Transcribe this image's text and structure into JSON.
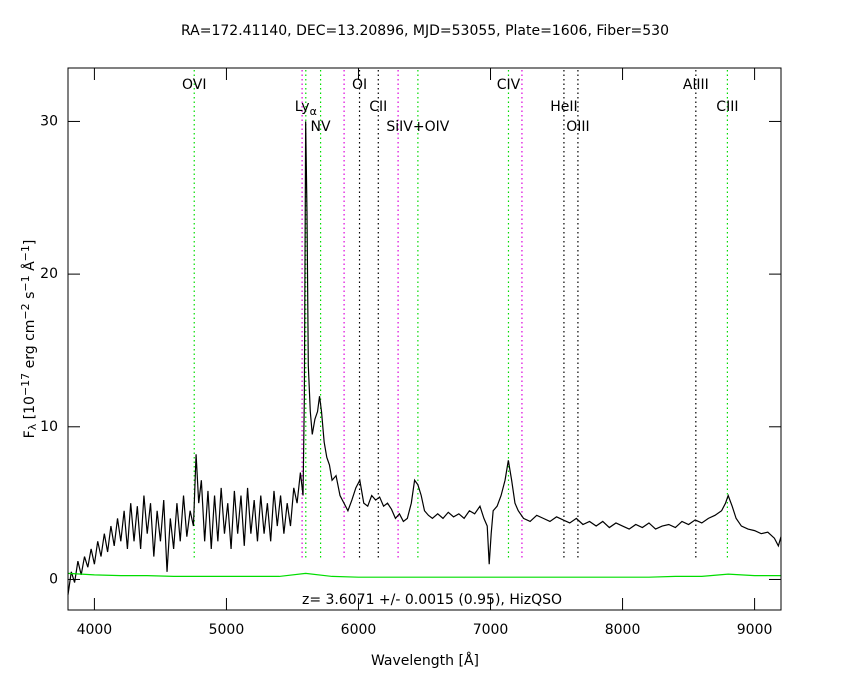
{
  "chart_data": {
    "type": "line",
    "title": "RA=172.41140, DEC=13.20896, MJD=53055, Plate=1606, Fiber=530",
    "xlabel": "Wavelength [Å]",
    "ylabel": [
      {
        "text": "F"
      },
      {
        "text": "λ",
        "script": "sub"
      },
      {
        "text": " [10"
      },
      {
        "text": "−17",
        "script": "sup"
      },
      {
        "text": " erg cm"
      },
      {
        "text": "−2",
        "script": "sup"
      },
      {
        "text": " s"
      },
      {
        "text": "−1",
        "script": "sup"
      },
      {
        "text": " Å"
      },
      {
        "text": "−1",
        "script": "sup"
      },
      {
        "text": "]"
      }
    ],
    "annotation": "z=  3.6071 +/- 0.0015 (0.95), HizQSO",
    "xlim": [
      3800,
      9200
    ],
    "xticks": [
      4000,
      5000,
      6000,
      7000,
      8000,
      9000
    ],
    "ylim": [
      -2,
      33.5
    ],
    "yticks": [
      0,
      10,
      20,
      30
    ],
    "series": [
      {
        "color": "#000000",
        "x": [
          3800,
          3825,
          3850,
          3875,
          3900,
          3925,
          3950,
          3975,
          4000,
          4025,
          4050,
          4075,
          4100,
          4125,
          4150,
          4175,
          4200,
          4225,
          4250,
          4275,
          4300,
          4325,
          4350,
          4375,
          4400,
          4425,
          4450,
          4475,
          4500,
          4525,
          4550,
          4575,
          4600,
          4625,
          4650,
          4675,
          4700,
          4725,
          4750,
          4770,
          4790,
          4810,
          4835,
          4860,
          4885,
          4910,
          4935,
          4960,
          4985,
          5010,
          5035,
          5060,
          5085,
          5110,
          5135,
          5160,
          5185,
          5210,
          5235,
          5260,
          5285,
          5310,
          5335,
          5360,
          5385,
          5410,
          5435,
          5460,
          5485,
          5510,
          5535,
          5560,
          5580,
          5590,
          5600,
          5610,
          5620,
          5635,
          5650,
          5670,
          5690,
          5705,
          5720,
          5740,
          5760,
          5780,
          5800,
          5830,
          5860,
          5890,
          5920,
          5950,
          5980,
          6010,
          6040,
          6070,
          6100,
          6130,
          6160,
          6190,
          6220,
          6250,
          6280,
          6310,
          6340,
          6370,
          6400,
          6425,
          6450,
          6475,
          6500,
          6530,
          6560,
          6600,
          6640,
          6680,
          6720,
          6760,
          6800,
          6840,
          6880,
          6920,
          6950,
          6975,
          6990,
          7005,
          7020,
          7050,
          7080,
          7110,
          7135,
          7160,
          7185,
          7210,
          7250,
          7300,
          7350,
          7400,
          7450,
          7500,
          7550,
          7600,
          7650,
          7700,
          7750,
          7800,
          7850,
          7900,
          7950,
          8000,
          8050,
          8100,
          8150,
          8200,
          8250,
          8300,
          8350,
          8400,
          8450,
          8500,
          8550,
          8600,
          8650,
          8700,
          8750,
          8780,
          8800,
          8830,
          8860,
          8900,
          8950,
          9000,
          9050,
          9100,
          9150,
          9180,
          9200
        ],
        "values": [
          -1.0,
          0.5,
          -0.2,
          1.2,
          0.3,
          1.5,
          0.8,
          2.0,
          1.0,
          2.5,
          1.5,
          3.0,
          1.8,
          3.5,
          2.2,
          4.0,
          2.5,
          4.5,
          2.0,
          5.0,
          2.5,
          4.8,
          2.0,
          5.5,
          3.0,
          5.0,
          1.5,
          4.5,
          2.5,
          5.2,
          0.5,
          4.0,
          2.0,
          5.0,
          2.5,
          5.5,
          2.8,
          4.5,
          3.5,
          8.2,
          5.0,
          6.5,
          2.5,
          5.8,
          2.0,
          5.5,
          2.5,
          6.0,
          3.0,
          5.0,
          2.0,
          5.8,
          3.0,
          5.5,
          2.2,
          6.0,
          3.0,
          5.2,
          2.5,
          5.5,
          3.0,
          5.0,
          2.5,
          5.8,
          3.5,
          5.5,
          3.0,
          5.0,
          3.5,
          6.0,
          5.0,
          7.0,
          5.5,
          12.0,
          30.0,
          24.0,
          14.0,
          11.0,
          9.5,
          10.5,
          11.0,
          12.0,
          11.0,
          9.0,
          8.0,
          7.5,
          6.5,
          6.8,
          5.5,
          5.0,
          4.5,
          5.2,
          6.0,
          6.5,
          5.0,
          4.8,
          5.5,
          5.2,
          5.4,
          4.8,
          5.0,
          4.6,
          4.0,
          4.3,
          3.8,
          4.0,
          5.0,
          6.5,
          6.2,
          5.5,
          4.5,
          4.2,
          4.0,
          4.3,
          4.0,
          4.4,
          4.1,
          4.3,
          4.0,
          4.5,
          4.3,
          4.8,
          4.0,
          3.5,
          1.0,
          3.0,
          4.5,
          4.8,
          5.5,
          6.5,
          7.8,
          6.5,
          5.0,
          4.5,
          4.0,
          3.8,
          4.2,
          4.0,
          3.8,
          4.1,
          3.9,
          3.7,
          4.0,
          3.6,
          3.8,
          3.5,
          3.8,
          3.4,
          3.7,
          3.5,
          3.3,
          3.6,
          3.4,
          3.7,
          3.3,
          3.5,
          3.6,
          3.4,
          3.8,
          3.6,
          3.9,
          3.7,
          4.0,
          4.2,
          4.5,
          5.0,
          5.5,
          4.8,
          4.0,
          3.5,
          3.3,
          3.2,
          3.0,
          3.1,
          2.7,
          2.2,
          2.8
        ]
      },
      {
        "color": "#00dd00",
        "x": [
          3800,
          4000,
          4200,
          4400,
          4600,
          4800,
          5000,
          5200,
          5400,
          5600,
          5800,
          6000,
          6200,
          6400,
          6600,
          6800,
          7000,
          7200,
          7400,
          7600,
          7800,
          8000,
          8200,
          8400,
          8600,
          8800,
          9000,
          9200
        ],
        "values": [
          0.4,
          0.3,
          0.25,
          0.25,
          0.2,
          0.2,
          0.2,
          0.2,
          0.2,
          0.4,
          0.2,
          0.15,
          0.15,
          0.15,
          0.15,
          0.15,
          0.15,
          0.15,
          0.15,
          0.15,
          0.15,
          0.15,
          0.15,
          0.2,
          0.2,
          0.35,
          0.25,
          0.25
        ]
      }
    ],
    "markers": [
      {
        "x": 4756,
        "color": "#00dd00",
        "label": "OVI"
      },
      {
        "x": 5573,
        "color": "#dd00dd"
      },
      {
        "x": 5601,
        "color": "#00dd00",
        "label": "Ly",
        "sub": "α"
      },
      {
        "x": 5713,
        "color": "#00dd00",
        "label": "NV"
      },
      {
        "x": 5891,
        "color": "#dd00dd"
      },
      {
        "x": 6008,
        "color": "#000000",
        "label": "OI"
      },
      {
        "x": 6150,
        "color": "#000000",
        "label": "CII"
      },
      {
        "x": 6300,
        "color": "#dd00dd"
      },
      {
        "x": 6450,
        "color": "#00dd00",
        "label": "SiIV+OIV"
      },
      {
        "x": 7136,
        "color": "#00dd00",
        "label": "CIV"
      },
      {
        "x": 7238,
        "color": "#dd00dd"
      },
      {
        "x": 7556,
        "color": "#000000",
        "label": "HeII"
      },
      {
        "x": 7662,
        "color": "#000000",
        "label": "OIII"
      },
      {
        "x": 8555,
        "color": "#000000",
        "label": "AlIII"
      },
      {
        "x": 8794,
        "color": "#00dd00",
        "label": "CIII"
      }
    ]
  }
}
